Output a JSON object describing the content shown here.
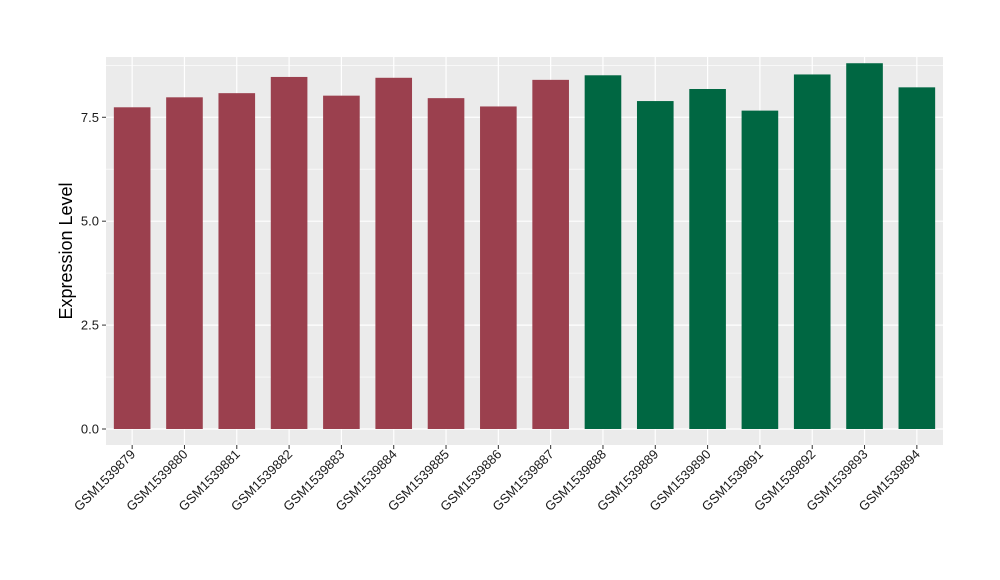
{
  "chart_data": {
    "type": "bar",
    "title": "",
    "xlabel": "",
    "ylabel": "Expression Level",
    "ylim": [
      0,
      8.95
    ],
    "yticks": [
      0.0,
      2.5,
      5.0,
      7.5
    ],
    "ytick_labels": [
      "0.0",
      "2.5",
      "5.0",
      "7.5"
    ],
    "grid": true,
    "legend": "none",
    "categories": [
      "GSM1539879",
      "GSM1539880",
      "GSM1539881",
      "GSM1539882",
      "GSM1539883",
      "GSM1539884",
      "GSM1539885",
      "GSM1539886",
      "GSM1539887",
      "GSM1539888",
      "GSM1539889",
      "GSM1539890",
      "GSM1539891",
      "GSM1539892",
      "GSM1539893",
      "GSM1539894"
    ],
    "values": [
      7.74,
      7.98,
      8.08,
      8.47,
      8.02,
      8.45,
      7.96,
      7.76,
      8.4,
      8.51,
      7.89,
      8.18,
      7.66,
      8.53,
      8.8,
      8.22
    ],
    "group_index": [
      0,
      0,
      0,
      0,
      0,
      0,
      0,
      0,
      0,
      1,
      1,
      1,
      1,
      1,
      1,
      1
    ],
    "colors": {
      "groups": [
        "#9b404e",
        "#006742"
      ],
      "panel_background": "#ebebeb",
      "grid": "#ffffff"
    }
  }
}
